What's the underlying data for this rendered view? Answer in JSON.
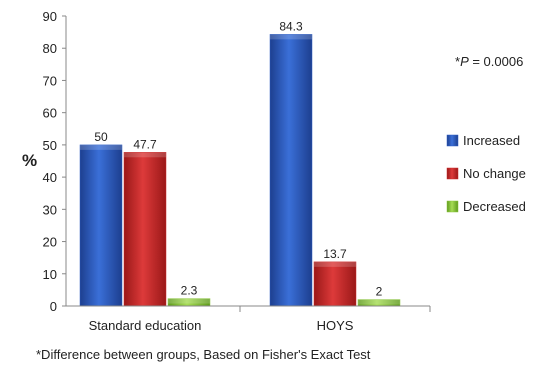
{
  "chart_data": {
    "type": "bar",
    "categories": [
      "Standard education",
      "HOYS"
    ],
    "series": [
      {
        "name": "Increased",
        "values": [
          50,
          84.3
        ],
        "color": "#2f5fc4"
      },
      {
        "name": "No change",
        "values": [
          47.7,
          13.7
        ],
        "color": "#cc2b2b"
      },
      {
        "name": "Decreased",
        "values": [
          2.3,
          2
        ],
        "color": "#8cc63f"
      }
    ],
    "data_labels": [
      [
        "50",
        "84.3"
      ],
      [
        "47.7",
        "13.7"
      ],
      [
        "2.3",
        "2"
      ]
    ],
    "ylabel": "%",
    "ylim": [
      0,
      90
    ],
    "yticks": [
      0,
      10,
      20,
      30,
      40,
      50,
      60,
      70,
      80,
      90
    ],
    "grid": false,
    "legend_position": "right",
    "annotation_prefix": "*",
    "annotation_symbol": "P",
    "annotation_value": " = 0.0006",
    "footnote": "*Difference between groups, Based on Fisher's Exact Test"
  }
}
